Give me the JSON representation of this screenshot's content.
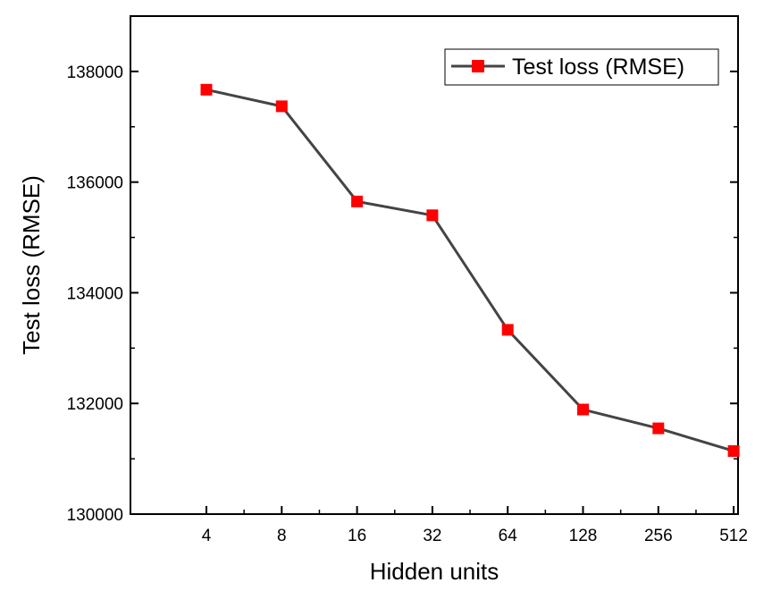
{
  "chart_data": {
    "type": "line",
    "title": "",
    "xlabel": "Hidden units",
    "ylabel": "Test loss (RMSE)",
    "x_scale": "log2",
    "categories": [
      "4",
      "8",
      "16",
      "32",
      "64",
      "128",
      "256",
      "512"
    ],
    "x": [
      4,
      8,
      16,
      32,
      64,
      128,
      256,
      512
    ],
    "series": [
      {
        "name": "Test loss (RMSE)",
        "values": [
          137670,
          137370,
          135650,
          135400,
          133330,
          131890,
          131550,
          131140
        ],
        "line_color": "#444444",
        "marker": "square",
        "marker_color": "#ff0000"
      }
    ],
    "ylim": [
      130000,
      139000
    ],
    "yticks": [
      130000,
      132000,
      134000,
      136000,
      138000
    ],
    "ytick_labels": [
      "130000",
      "132000",
      "134000",
      "136000",
      "138000"
    ],
    "grid": false,
    "legend_position": "top-right"
  }
}
